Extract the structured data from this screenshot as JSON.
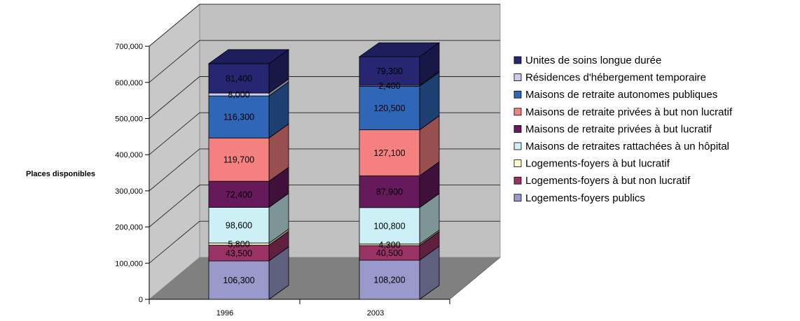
{
  "chart_data": {
    "type": "bar",
    "stacked": true,
    "three_d": true,
    "title": "",
    "xlabel": "",
    "ylabel": "Places disponibles",
    "ylim": [
      0,
      700000
    ],
    "ytick_values": [
      0,
      100000,
      200000,
      300000,
      400000,
      500000,
      600000,
      700000
    ],
    "ytick_labels": [
      "0",
      "100,000",
      "200,000",
      "300,000",
      "400,000",
      "500,000",
      "600,000",
      "700,000"
    ],
    "grid": true,
    "legend_position": "right",
    "categories": [
      "1996",
      "2003"
    ],
    "series": [
      {
        "name": "Logements-foyers publics",
        "values": [
          106300,
          108200
        ],
        "labels": [
          "106,300",
          "108,200"
        ],
        "color": "#9999cc"
      },
      {
        "name": "Logements-foyers à but non lucratif",
        "values": [
          43500,
          40500
        ],
        "labels": [
          "43,500",
          "40,500"
        ],
        "color": "#993366"
      },
      {
        "name": "Logements-foyers à but lucratif",
        "values": [
          5800,
          4300
        ],
        "labels": [
          "5,800",
          "4,300"
        ],
        "color": "#ffffcc"
      },
      {
        "name": "Maisons de retraites rattachées à un hôpital",
        "values": [
          98600,
          100800
        ],
        "labels": [
          "98,600",
          "100,800"
        ],
        "color": "#ccf0f5"
      },
      {
        "name": "Maisons de retraite privées à but lucratif",
        "values": [
          72400,
          87900
        ],
        "labels": [
          "72,400",
          "87,900"
        ],
        "color": "#661a5c"
      },
      {
        "name": "Maisons de retraite privées à but non lucratif",
        "values": [
          119700,
          127100
        ],
        "labels": [
          "119,700",
          "127,100"
        ],
        "color": "#f58080"
      },
      {
        "name": "Maisons de retraite autonomes publiques",
        "values": [
          116300,
          120500
        ],
        "labels": [
          "116,300",
          "120,500"
        ],
        "color": "#2f66b8"
      },
      {
        "name": "Résidences d'hébergement temporaire",
        "values": [
          8000,
          2400
        ],
        "labels": [
          "8,000",
          "2,400"
        ],
        "color": "#ccccee"
      },
      {
        "name": "Unites de soins longue durée",
        "values": [
          81400,
          79300
        ],
        "labels": [
          "81,400",
          "79,300"
        ],
        "color": "#262673"
      }
    ]
  }
}
